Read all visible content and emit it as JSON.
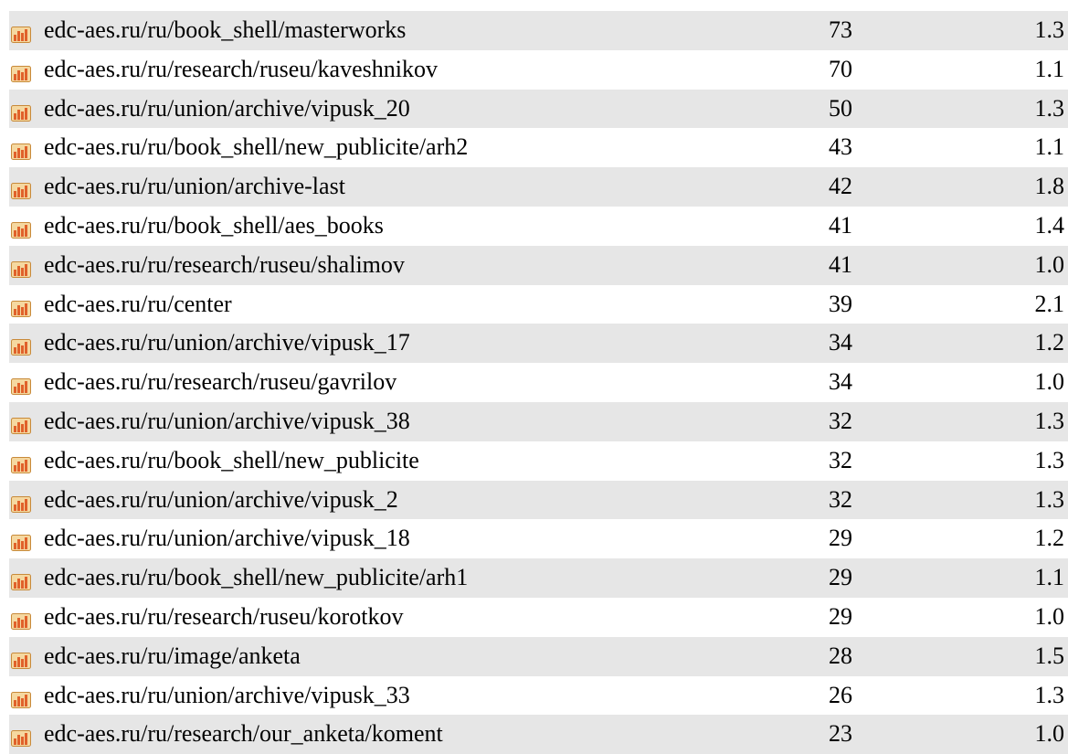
{
  "table": {
    "rows": [
      [
        "edc-aes.ru/ru/book_shell/masterworks",
        73,
        "1.3"
      ],
      [
        "edc-aes.ru/ru/research/ruseu/kaveshnikov",
        70,
        "1.1"
      ],
      [
        "edc-aes.ru/ru/union/archive/vipusk_20",
        50,
        "1.3"
      ],
      [
        "edc-aes.ru/ru/book_shell/new_publicite/arh2",
        43,
        "1.1"
      ],
      [
        "edc-aes.ru/ru/union/archive-last",
        42,
        "1.8"
      ],
      [
        "edc-aes.ru/ru/book_shell/aes_books",
        41,
        "1.4"
      ],
      [
        "edc-aes.ru/ru/research/ruseu/shalimov",
        41,
        "1.0"
      ],
      [
        "edc-aes.ru/ru/center",
        39,
        "2.1"
      ],
      [
        "edc-aes.ru/ru/union/archive/vipusk_17",
        34,
        "1.2"
      ],
      [
        "edc-aes.ru/ru/research/ruseu/gavrilov",
        34,
        "1.0"
      ],
      [
        "edc-aes.ru/ru/union/archive/vipusk_38",
        32,
        "1.3"
      ],
      [
        "edc-aes.ru/ru/book_shell/new_publicite",
        32,
        "1.3"
      ],
      [
        "edc-aes.ru/ru/union/archive/vipusk_2",
        32,
        "1.3"
      ],
      [
        "edc-aes.ru/ru/union/archive/vipusk_18",
        29,
        "1.2"
      ],
      [
        "edc-aes.ru/ru/book_shell/new_publicite/arh1",
        29,
        "1.1"
      ],
      [
        "edc-aes.ru/ru/research/ruseu/korotkov",
        29,
        "1.0"
      ],
      [
        "edc-aes.ru/ru/image/anketa",
        28,
        "1.5"
      ],
      [
        "edc-aes.ru/ru/union/archive/vipusk_33",
        26,
        "1.3"
      ],
      [
        "edc-aes.ru/ru/research/our_anketa/koment",
        23,
        "1.0"
      ]
    ]
  }
}
